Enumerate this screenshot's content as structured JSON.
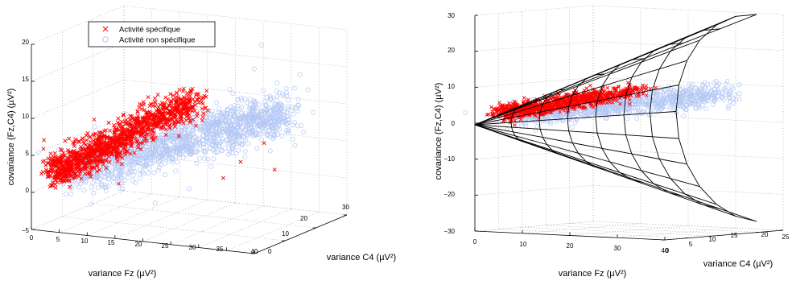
{
  "chart_data": [
    {
      "type": "scatter",
      "title": "",
      "xlabel": "variance Fz (µV²)",
      "ylabel": "variance C4 (µV²)",
      "zlabel": "covariance (Fz,C4) (µV²)",
      "xlim": [
        0,
        40
      ],
      "ylim": [
        0,
        30
      ],
      "zlim": [
        -5,
        20
      ],
      "xticks": [
        "0",
        "5",
        "10",
        "15",
        "20",
        "25",
        "30",
        "35",
        "40"
      ],
      "yticks": [
        "0",
        "10",
        "20",
        "30"
      ],
      "zticks": [
        "−5",
        "0",
        "5",
        "10",
        "15",
        "20"
      ],
      "grid": true,
      "legend_position": "top-left",
      "series": [
        {
          "name": "Activité spécifique",
          "marker": "x",
          "color": "#ff0000",
          "description_points": [
            {
              "x": 4,
              "y": 3,
              "z": 3
            },
            {
              "x": 6,
              "y": 4,
              "z": 4
            },
            {
              "x": 8,
              "y": 5,
              "z": 6
            },
            {
              "x": 10,
              "y": 6,
              "z": 7
            },
            {
              "x": 12,
              "y": 7,
              "z": 8.5
            },
            {
              "x": 14,
              "y": 8,
              "z": 10
            },
            {
              "x": 16,
              "y": 9,
              "z": 11
            },
            {
              "x": 18,
              "y": 10,
              "z": 12.5
            },
            {
              "x": 20,
              "y": 11,
              "z": 13.5
            }
          ]
        },
        {
          "name": "Activité non spécifique",
          "marker": "o",
          "color": "#b4c8f5",
          "description_points": [
            {
              "x": 8,
              "y": 4,
              "z": 3
            },
            {
              "x": 12,
              "y": 6,
              "z": 4.5
            },
            {
              "x": 16,
              "y": 8,
              "z": 6
            },
            {
              "x": 20,
              "y": 10,
              "z": 7.5
            },
            {
              "x": 24,
              "y": 12,
              "z": 9
            },
            {
              "x": 28,
              "y": 14,
              "z": 10
            },
            {
              "x": 32,
              "y": 16,
              "z": 11
            },
            {
              "x": 36,
              "y": 18,
              "z": 15
            }
          ]
        }
      ]
    },
    {
      "type": "scatter",
      "title": "",
      "xlabel": "variance Fz (µV²)",
      "ylabel": "variance C4 (µV²)",
      "zlabel": "covariance (Fz,C4) (µV²)",
      "xlim": [
        0,
        40
      ],
      "ylim": [
        0,
        25
      ],
      "zlim": [
        -30,
        30
      ],
      "xticks": [
        "0",
        "10",
        "20",
        "30",
        "40"
      ],
      "yticks": [
        "0",
        "5",
        "10",
        "15",
        "20",
        "25"
      ],
      "zticks": [
        "−30",
        "−20",
        "−10",
        "0",
        "10",
        "20",
        "30"
      ],
      "grid": true,
      "surface": "cone boundary (mesh)",
      "series": [
        {
          "name": "Activité spécifique",
          "marker": "x",
          "color": "#ff0000"
        },
        {
          "name": "Activité non spécifique",
          "marker": "o",
          "color": "#b4c8f5"
        }
      ]
    }
  ]
}
